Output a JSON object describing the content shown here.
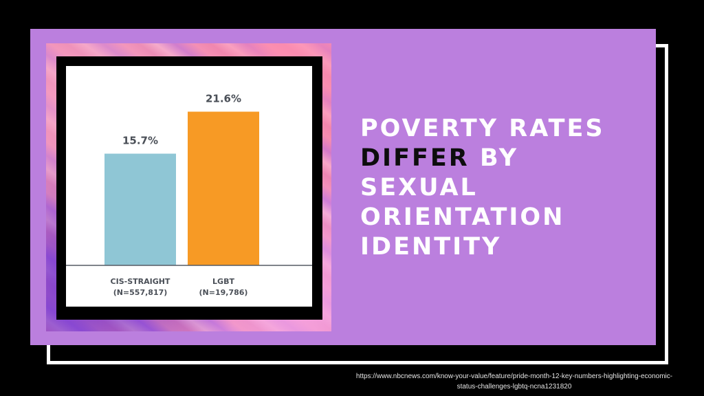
{
  "headline": {
    "line1": "POVERTY RATES",
    "line2_highlight": "DIFFER",
    "line2_rest": " BY",
    "line3": "SEXUAL",
    "line4": "ORIENTATION",
    "line5": "IDENTITY"
  },
  "source": {
    "line1": "https://www.nbcnews.com/know-your-value/feature/pride-month-12-key-numbers-highlighting-economic-",
    "line2": "status-challenges-lgbtq-ncna1231820"
  },
  "colors": {
    "panel": "#bb7fde",
    "bar_cis": "#8fc6d5",
    "bar_lgbt": "#f79a25",
    "headline_text": "#ffffff",
    "headline_highlight": "#0d0d0d"
  },
  "chart_data": {
    "type": "bar",
    "ylim": [
      0,
      25
    ],
    "categories": [
      {
        "line1": "CIS-STRAIGHT",
        "line2": "(N=557,817)"
      },
      {
        "line1": "LGBT",
        "line2": "(N=19,786)"
      }
    ],
    "values": [
      15.7,
      21.6
    ],
    "value_labels": [
      "15.7%",
      "21.6%"
    ],
    "bar_colors": [
      "#8fc6d5",
      "#f79a25"
    ]
  }
}
